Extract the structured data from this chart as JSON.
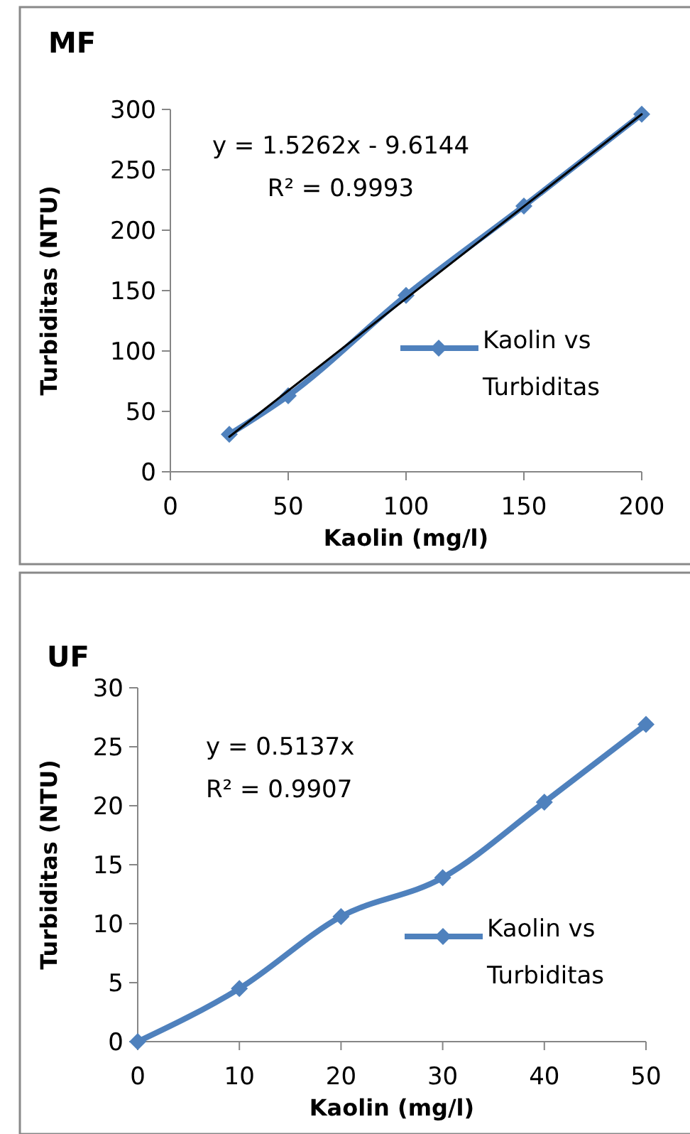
{
  "chart_data": [
    {
      "type": "line",
      "title": "MF",
      "xlabel": "Kaolin (mg/l)",
      "ylabel": "Turbiditas (NTU)",
      "x": [
        25,
        50,
        100,
        150,
        200
      ],
      "xlim": [
        0,
        200
      ],
      "xticks": [
        0,
        50,
        100,
        150,
        200
      ],
      "ylim": [
        0,
        300
      ],
      "yticks": [
        0,
        50,
        100,
        150,
        200,
        250,
        300
      ],
      "marker": "diamond",
      "legend": "right",
      "grid": false,
      "series": [
        {
          "name": "Kaolin vs Turbiditas",
          "color": "#4f81bd",
          "values": [
            31,
            63,
            146,
            220,
            296
          ]
        },
        {
          "type": "line",
          "color": "#000000",
          "x": [
            25,
            200
          ],
          "values": [
            29,
            296
          ],
          "marker": "none"
        }
      ],
      "annotations": [
        "y = 1.5262x - 9.6144",
        "R² = 0.9993"
      ]
    },
    {
      "type": "line",
      "title": "UF",
      "xlabel": "Kaolin (mg/l)",
      "ylabel": "Turbiditas (NTU)",
      "x": [
        0,
        10,
        20,
        30,
        40,
        50
      ],
      "xlim": [
        0,
        50
      ],
      "xticks": [
        0,
        10,
        20,
        30,
        40,
        50
      ],
      "ylim": [
        0,
        30
      ],
      "yticks": [
        0,
        5,
        10,
        15,
        20,
        25,
        30
      ],
      "marker": "diamond",
      "legend": "right",
      "grid": false,
      "series": [
        {
          "name": "Kaolin vs Turbiditas",
          "color": "#4f81bd",
          "values": [
            0,
            4.5,
            10.6,
            13.9,
            20.3,
            26.9
          ]
        }
      ],
      "annotations": [
        "y = 0.5137x",
        "R² = 0.9907"
      ]
    }
  ]
}
